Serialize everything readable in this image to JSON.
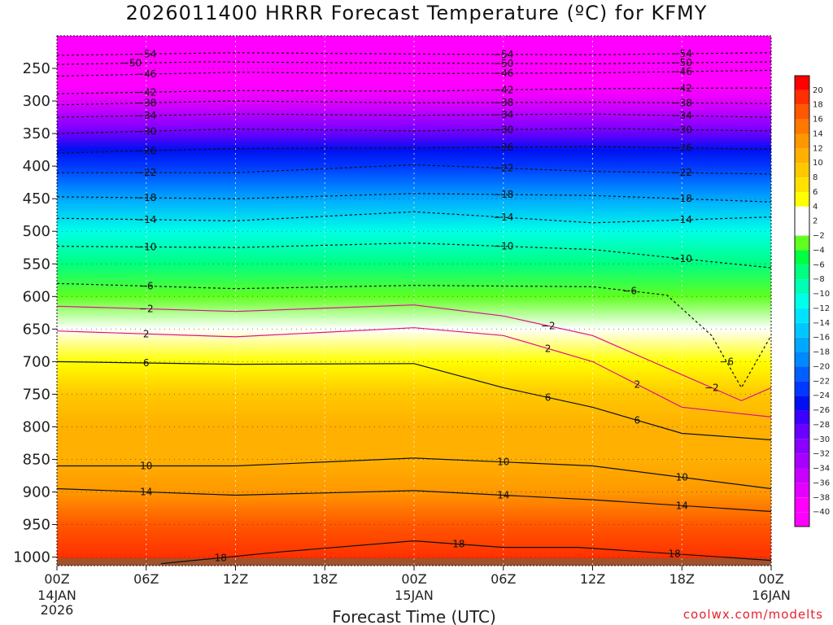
{
  "chart_data": {
    "type": "heatmap",
    "title": "2026011400 HRRR Forecast Temperature (ºC) for KFMY",
    "xlabel": "Forecast Time (UTC)",
    "ylabel": "",
    "credit": "coolwx.com/modelts",
    "x_range_hours": [
      0,
      48
    ],
    "x_ticks": [
      {
        "hour": 0,
        "label": "00Z",
        "sub": "14JAN",
        "sub2": "2026"
      },
      {
        "hour": 6,
        "label": "06Z"
      },
      {
        "hour": 12,
        "label": "12Z"
      },
      {
        "hour": 18,
        "label": "18Z"
      },
      {
        "hour": 24,
        "label": "00Z",
        "sub": "15JAN"
      },
      {
        "hour": 30,
        "label": "06Z"
      },
      {
        "hour": 36,
        "label": "12Z"
      },
      {
        "hour": 42,
        "label": "18Z"
      },
      {
        "hour": 48,
        "label": "00Z",
        "sub": "16JAN"
      }
    ],
    "y_range_hpa": [
      200,
      1013
    ],
    "y_ticks": [
      250,
      300,
      350,
      400,
      450,
      500,
      550,
      600,
      650,
      700,
      750,
      800,
      850,
      900,
      950,
      1000
    ],
    "colorbar_labels": [
      20,
      18,
      16,
      14,
      12,
      10,
      8,
      6,
      4,
      2,
      -2,
      -4,
      -6,
      -8,
      -10,
      -12,
      -14,
      -16,
      -18,
      -20,
      -22,
      -24,
      -26,
      -28,
      -30,
      -32,
      -34,
      -36,
      -38,
      -40
    ],
    "color_scale": [
      {
        "t": -44,
        "c": "#ff00ff"
      },
      {
        "t": -40,
        "c": "#ff00ff"
      },
      {
        "t": -38,
        "c": "#e400ff"
      },
      {
        "t": -36,
        "c": "#c800ff"
      },
      {
        "t": -34,
        "c": "#a800ff"
      },
      {
        "t": -32,
        "c": "#8c00ff"
      },
      {
        "t": -30,
        "c": "#6a00ff"
      },
      {
        "t": -28,
        "c": "#3c00ff"
      },
      {
        "t": -26,
        "c": "#0010f0"
      },
      {
        "t": -24,
        "c": "#0038ff"
      },
      {
        "t": -22,
        "c": "#0060ff"
      },
      {
        "t": -20,
        "c": "#0088ff"
      },
      {
        "t": -18,
        "c": "#00a8ff"
      },
      {
        "t": -16,
        "c": "#00c8ff"
      },
      {
        "t": -14,
        "c": "#00e4ff"
      },
      {
        "t": -12,
        "c": "#00ffe8"
      },
      {
        "t": -10,
        "c": "#00ffb4"
      },
      {
        "t": -8,
        "c": "#00ff80"
      },
      {
        "t": -6,
        "c": "#00ff40"
      },
      {
        "t": -4,
        "c": "#60ff20"
      },
      {
        "t": -2,
        "c": "#ffffff"
      },
      {
        "t": 2,
        "c": "#ffffff"
      },
      {
        "t": 4,
        "c": "#ffff00"
      },
      {
        "t": 6,
        "c": "#ffe000"
      },
      {
        "t": 8,
        "c": "#ffc800"
      },
      {
        "t": 10,
        "c": "#ffb000"
      },
      {
        "t": 12,
        "c": "#ff9800"
      },
      {
        "t": 14,
        "c": "#ff7800"
      },
      {
        "t": 16,
        "c": "#ff5800"
      },
      {
        "t": 18,
        "c": "#ff3000"
      },
      {
        "t": 20,
        "c": "#ff0000"
      },
      {
        "t": 22,
        "c": "#ff0000"
      }
    ],
    "temperature_profile": [
      {
        "hpa": 200,
        "t": -58
      },
      {
        "hpa": 225,
        "t": -54
      },
      {
        "hpa": 250,
        "t": -48
      },
      {
        "hpa": 275,
        "t": -43
      },
      {
        "hpa": 300,
        "t": -38
      },
      {
        "hpa": 325,
        "t": -34
      },
      {
        "hpa": 350,
        "t": -30
      },
      {
        "hpa": 375,
        "t": -26
      },
      {
        "hpa": 400,
        "t": -23
      },
      {
        "hpa": 450,
        "t": -18
      },
      {
        "hpa": 500,
        "t": -12
      },
      {
        "hpa": 550,
        "t": -8
      },
      {
        "hpa": 600,
        "t": -3
      },
      {
        "hpa": 650,
        "t": 2
      },
      {
        "hpa": 700,
        "t": 5
      },
      {
        "hpa": 750,
        "t": 8
      },
      {
        "hpa": 800,
        "t": 10
      },
      {
        "hpa": 850,
        "t": 11
      },
      {
        "hpa": 900,
        "t": 13
      },
      {
        "hpa": 950,
        "t": 16
      },
      {
        "hpa": 1000,
        "t": 19
      },
      {
        "hpa": 1013,
        "t": 20
      }
    ],
    "contours": [
      {
        "t": -54,
        "pts": [
          [
            0,
            230
          ],
          [
            12,
            226
          ],
          [
            24,
            228
          ],
          [
            36,
            229
          ],
          [
            48,
            226
          ]
        ]
      },
      {
        "t": -50,
        "pts": [
          [
            0,
            244
          ],
          [
            10,
            240
          ],
          [
            24,
            242
          ],
          [
            36,
            243
          ],
          [
            48,
            240
          ]
        ]
      },
      {
        "t": -46,
        "pts": [
          [
            0,
            262
          ],
          [
            12,
            256
          ],
          [
            24,
            258
          ],
          [
            36,
            257
          ],
          [
            48,
            253
          ]
        ]
      },
      {
        "t": -42,
        "pts": [
          [
            0,
            289
          ],
          [
            12,
            284
          ],
          [
            24,
            285
          ],
          [
            36,
            281
          ],
          [
            48,
            280
          ]
        ]
      },
      {
        "t": -38,
        "pts": [
          [
            0,
            306
          ],
          [
            12,
            300
          ],
          [
            24,
            303
          ],
          [
            36,
            302
          ],
          [
            48,
            304
          ]
        ]
      },
      {
        "t": -34,
        "pts": [
          [
            0,
            325
          ],
          [
            12,
            320
          ],
          [
            24,
            322
          ],
          [
            36,
            320
          ],
          [
            48,
            325
          ]
        ]
      },
      {
        "t": -30,
        "pts": [
          [
            0,
            350
          ],
          [
            12,
            343
          ],
          [
            24,
            346
          ],
          [
            36,
            342
          ],
          [
            48,
            346
          ]
        ]
      },
      {
        "t": -26,
        "pts": [
          [
            0,
            380
          ],
          [
            12,
            373
          ],
          [
            24,
            372
          ],
          [
            36,
            370
          ],
          [
            48,
            374
          ]
        ]
      },
      {
        "t": -22,
        "pts": [
          [
            0,
            410
          ],
          [
            12,
            410
          ],
          [
            24,
            398
          ],
          [
            36,
            408
          ],
          [
            48,
            412
          ]
        ]
      },
      {
        "t": -18,
        "pts": [
          [
            0,
            447
          ],
          [
            12,
            450
          ],
          [
            24,
            442
          ],
          [
            36,
            445
          ],
          [
            48,
            455
          ]
        ]
      },
      {
        "t": -14,
        "pts": [
          [
            0,
            480
          ],
          [
            12,
            484
          ],
          [
            24,
            470
          ],
          [
            36,
            487
          ],
          [
            48,
            478
          ]
        ]
      },
      {
        "t": -10,
        "pts": [
          [
            0,
            523
          ],
          [
            12,
            525
          ],
          [
            24,
            518
          ],
          [
            36,
            528
          ],
          [
            48,
            556
          ]
        ]
      },
      {
        "t": -6,
        "pts": [
          [
            0,
            580
          ],
          [
            12,
            588
          ],
          [
            24,
            583
          ],
          [
            36,
            585
          ],
          [
            41,
            598
          ],
          [
            44,
            660
          ],
          [
            46,
            740
          ],
          [
            48,
            660
          ]
        ]
      },
      {
        "t": -2,
        "pts": [
          [
            0,
            615
          ],
          [
            12,
            623
          ],
          [
            24,
            613
          ],
          [
            30,
            630
          ],
          [
            36,
            660
          ],
          [
            42,
            720
          ],
          [
            46,
            760
          ],
          [
            48,
            740
          ]
        ]
      },
      {
        "t": 2,
        "pts": [
          [
            0,
            653
          ],
          [
            12,
            662
          ],
          [
            24,
            648
          ],
          [
            30,
            660
          ],
          [
            36,
            700
          ],
          [
            42,
            770
          ],
          [
            48,
            785
          ]
        ]
      },
      {
        "t": 6,
        "pts": [
          [
            0,
            700
          ],
          [
            12,
            704
          ],
          [
            24,
            703
          ],
          [
            30,
            740
          ],
          [
            36,
            770
          ],
          [
            42,
            810
          ],
          [
            48,
            820
          ]
        ]
      },
      {
        "t": 10,
        "pts": [
          [
            0,
            860
          ],
          [
            12,
            860
          ],
          [
            24,
            848
          ],
          [
            36,
            860
          ],
          [
            48,
            895
          ]
        ]
      },
      {
        "t": 14,
        "pts": [
          [
            0,
            895
          ],
          [
            12,
            905
          ],
          [
            24,
            898
          ],
          [
            36,
            912
          ],
          [
            48,
            930
          ]
        ]
      },
      {
        "t": 18,
        "pts": [
          [
            7,
            1010
          ],
          [
            15,
            992
          ],
          [
            24,
            975
          ],
          [
            30,
            985
          ],
          [
            35,
            985
          ],
          [
            48,
            1005
          ]
        ]
      }
    ]
  }
}
